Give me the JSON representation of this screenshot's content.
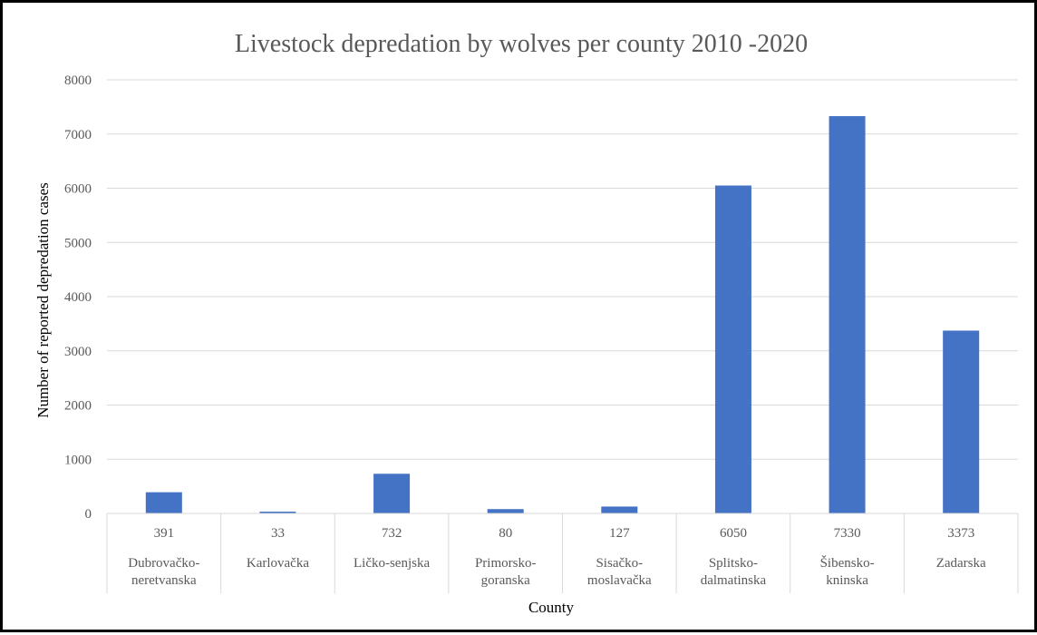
{
  "chart_data": {
    "type": "bar",
    "title": "Livestock depredation by wolves per county 2010 -2020",
    "xlabel": "County",
    "ylabel": "Number of reported depredation cases",
    "ylim": [
      0,
      8000
    ],
    "yticks": [
      "0",
      "1000",
      "2000",
      "3000",
      "4000",
      "5000",
      "6000",
      "7000",
      "8000"
    ],
    "grid": true,
    "legend": "none",
    "categories": [
      [
        "Dubrovačko-",
        "neretvanska"
      ],
      [
        "Karlovačka"
      ],
      [
        "Ličko-senjska"
      ],
      [
        "Primorsko-",
        "goranska"
      ],
      [
        "Sisačko-",
        "moslavačka"
      ],
      [
        "Splitsko-",
        "dalmatinska"
      ],
      [
        "Šibensko-",
        "kninska"
      ],
      [
        "Zadarska"
      ]
    ],
    "values": [
      391,
      33,
      732,
      80,
      127,
      6050,
      7330,
      3373
    ],
    "value_labels": [
      "391",
      "33",
      "732",
      "80",
      "127",
      "6050",
      "7330",
      "3373"
    ],
    "bar_color": "#4472C4",
    "grid_color": "#D9D9D9"
  }
}
